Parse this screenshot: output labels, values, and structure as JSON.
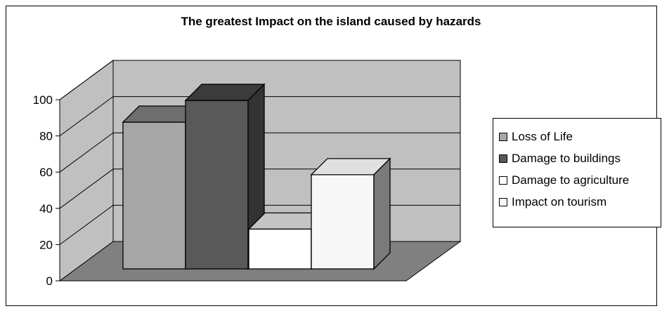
{
  "chart_data": {
    "type": "bar",
    "title": "The greatest Impact on the island caused by hazards",
    "xlabel": "",
    "ylabel": "",
    "ylim": [
      0,
      100
    ],
    "yticks": [
      0,
      20,
      40,
      60,
      80,
      100
    ],
    "three_d": true,
    "grid": true,
    "legend_position": "right",
    "series": [
      {
        "name": "Loss of Life",
        "values": [
          81
        ],
        "color": "#a6a6a6",
        "side_color": "#8c8c8c",
        "top_color": "#6e6e6e"
      },
      {
        "name": "Damage to buildings",
        "values": [
          93
        ],
        "color": "#595959",
        "side_color": "#333333",
        "top_color": "#3b3b3b"
      },
      {
        "name": "Damage to agriculture",
        "values": [
          22
        ],
        "color": "#ffffff",
        "side_color": "#ffffff",
        "top_color": "#c4c4c4"
      },
      {
        "name": "Impact on tourism",
        "values": [
          52
        ],
        "color": "#f7f7f7",
        "side_color": "#7a7a7a",
        "top_color": "#e0e0e0"
      }
    ],
    "wall_color": "#c0c0c0",
    "floor_color": "#808080"
  }
}
